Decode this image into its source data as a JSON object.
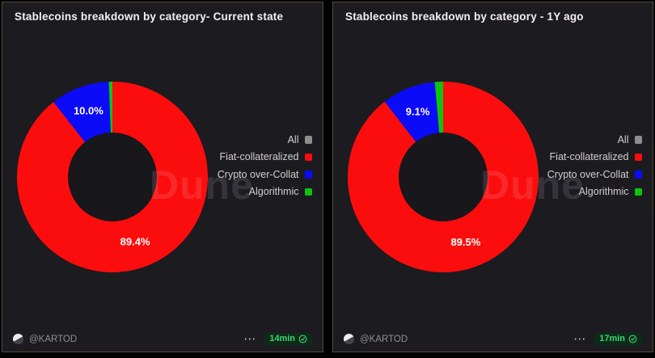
{
  "chart_data": [
    {
      "type": "pie",
      "donut": true,
      "title": "Stablecoins breakdown by category- Current state",
      "start_angle": "top",
      "direction": "clockwise",
      "categories": [
        "Fiat-collateralized",
        "Crypto over-Collat",
        "Algorithmic"
      ],
      "values": [
        89.4,
        10.0,
        0.6
      ],
      "slice_labels": [
        "89.4%",
        "10.0%",
        null
      ],
      "colors": [
        "#fc0d0d",
        "#0b0bf7",
        "#0ec50e"
      ],
      "watermark": "Dune",
      "legend": {
        "position": "right",
        "entries": [
          {
            "label": "All",
            "color": "#8f8f8f"
          },
          {
            "label": "Fiat-collateralized",
            "color": "#fc0d0d"
          },
          {
            "label": "Crypto over-Collat",
            "color": "#0b0bf7"
          },
          {
            "label": "Algorithmic",
            "color": "#0ec50e"
          }
        ]
      }
    },
    {
      "type": "pie",
      "donut": true,
      "title": "Stablecoins breakdown by category - 1Y ago",
      "start_angle": "top",
      "direction": "clockwise",
      "categories": [
        "Fiat-collateralized",
        "Crypto over-Collat",
        "Algorithmic"
      ],
      "values": [
        89.5,
        9.1,
        1.4
      ],
      "slice_labels": [
        "89.5%",
        "9.1%",
        null
      ],
      "colors": [
        "#fc0d0d",
        "#0b0bf7",
        "#0ec50e"
      ],
      "watermark": "Dune",
      "legend": {
        "position": "right",
        "entries": [
          {
            "label": "All",
            "color": "#8f8f8f"
          },
          {
            "label": "Fiat-collateralized",
            "color": "#fc0d0d"
          },
          {
            "label": "Crypto over-Collat",
            "color": "#0b0bf7"
          },
          {
            "label": "Algorithmic",
            "color": "#0ec50e"
          }
        ]
      }
    }
  ],
  "cards": [
    {
      "footer": {
        "handle": "@KARTOD",
        "avatar_icon": "dune-logo-avatar",
        "menu_icon": "more-options-icon",
        "refresh_label": "14min",
        "refresh_icon": "check-circle-icon"
      }
    },
    {
      "footer": {
        "handle": "@KARTOD",
        "avatar_icon": "dune-logo-avatar",
        "menu_icon": "more-options-icon",
        "refresh_label": "17min",
        "refresh_icon": "check-circle-icon"
      }
    }
  ]
}
